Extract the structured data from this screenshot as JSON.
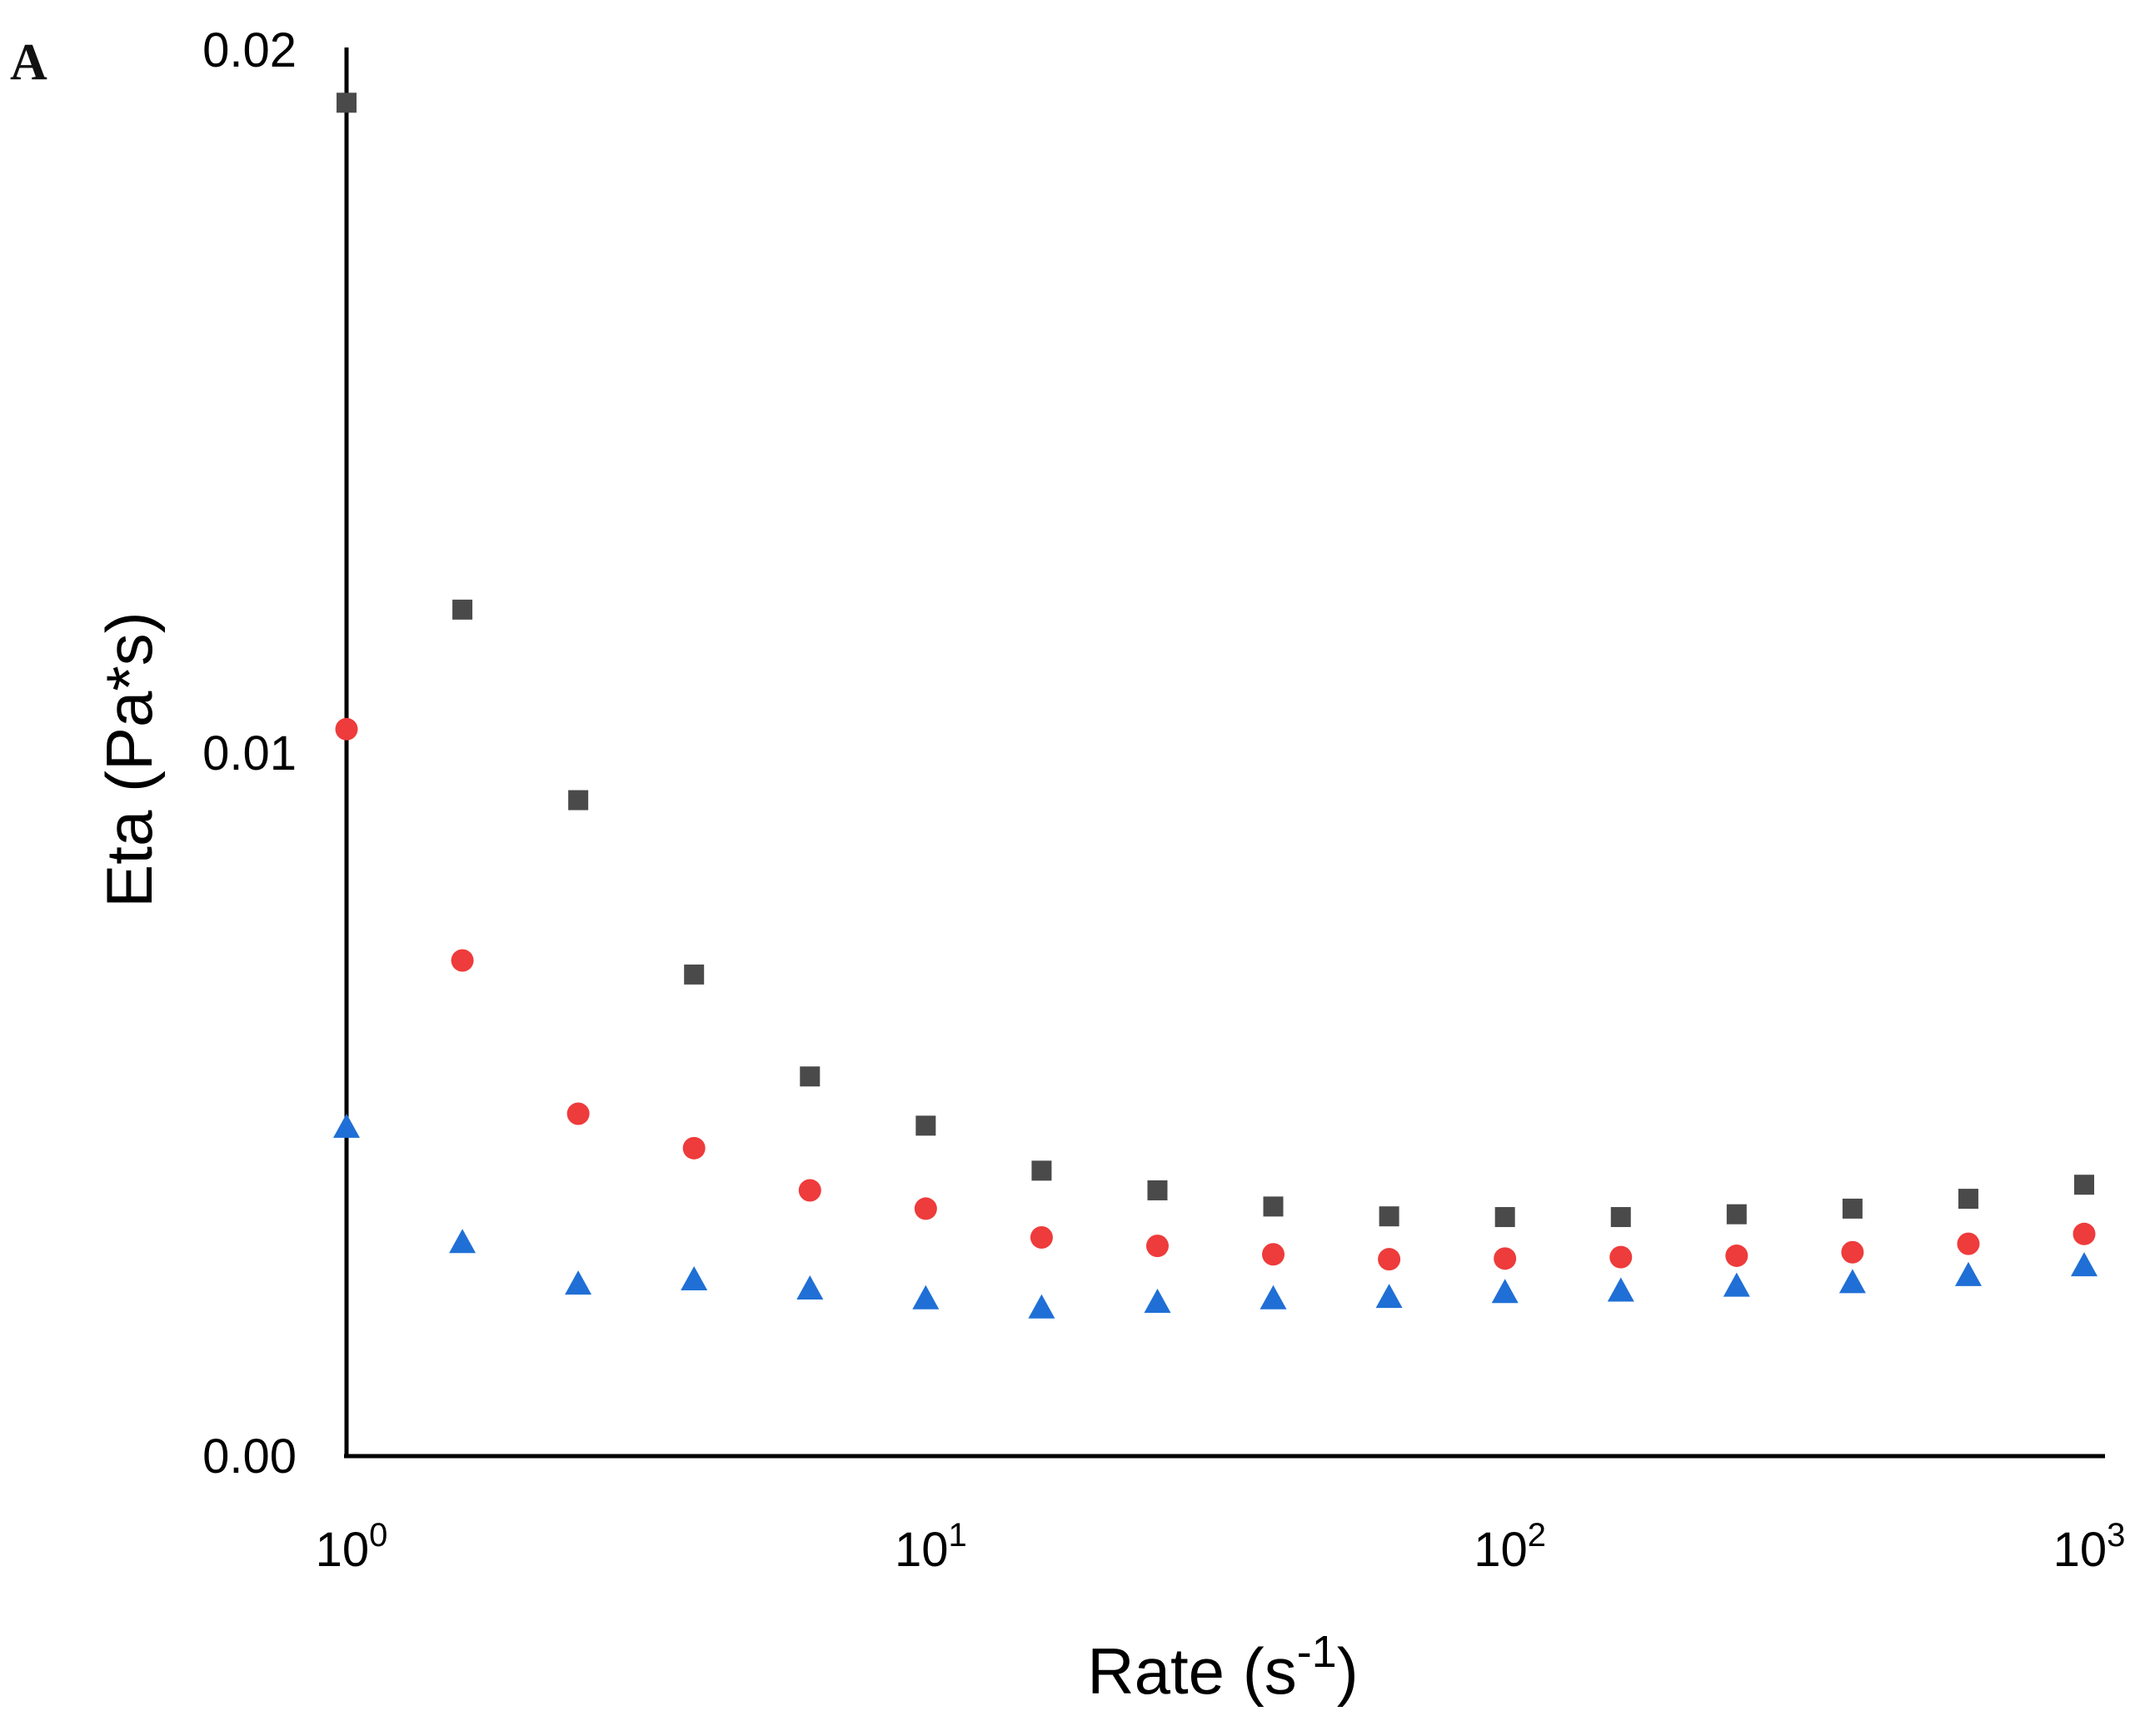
{
  "panel_label": "A",
  "colors": {
    "axis": "#000000",
    "series_square": "#4a4a4a",
    "series_circle": "#ee3b3b",
    "series_triangle": "#1f6fd6"
  },
  "chart_data": {
    "type": "scatter",
    "title": "",
    "xlabel": "Rate (s",
    "xlabel_sup": "-1",
    "xlabel_end": ")",
    "ylabel": "Eta (Pa*s)",
    "xscale": "log",
    "xlim": [
      1,
      1000
    ],
    "ylim": [
      0,
      0.02
    ],
    "x_ticks": [
      {
        "value": 1,
        "base": "10",
        "exp": "0"
      },
      {
        "value": 10,
        "base": "10",
        "exp": "1"
      },
      {
        "value": 100,
        "base": "10",
        "exp": "2"
      },
      {
        "value": 1000,
        "base": "10",
        "exp": "3"
      }
    ],
    "y_ticks": [
      {
        "value": 0,
        "label": "0.00"
      },
      {
        "value": 0.01,
        "label": "0.01"
      },
      {
        "value": 0.02,
        "label": "0.02"
      }
    ],
    "grid": false,
    "legend": "none",
    "x": [
      1,
      1.585,
      2.512,
      3.981,
      6.31,
      10,
      15.85,
      25.12,
      39.81,
      63.1,
      100,
      158.5,
      251.2,
      398.1,
      631,
      1000
    ],
    "series": [
      {
        "name": "square",
        "marker": "square",
        "values": [
          0.01925,
          0.01204,
          0.00933,
          0.00685,
          0.0054,
          0.0047,
          0.00406,
          0.00378,
          0.00355,
          0.00341,
          0.0034,
          0.0034,
          0.00344,
          0.00352,
          0.00366,
          0.00386
        ]
      },
      {
        "name": "circle",
        "marker": "circle",
        "values": [
          0.01034,
          0.00705,
          0.00487,
          0.00438,
          0.00378,
          0.00352,
          0.00311,
          0.00299,
          0.00287,
          0.0028,
          0.00281,
          0.00283,
          0.00285,
          0.0029,
          0.00302,
          0.00316
        ]
      },
      {
        "name": "triangle",
        "marker": "triangle",
        "values": [
          0.00467,
          0.00303,
          0.00244,
          0.0025,
          0.00237,
          0.00223,
          0.0021,
          0.00218,
          0.00223,
          0.00225,
          0.00232,
          0.00234,
          0.00241,
          0.00246,
          0.00256,
          0.0027
        ]
      }
    ]
  }
}
